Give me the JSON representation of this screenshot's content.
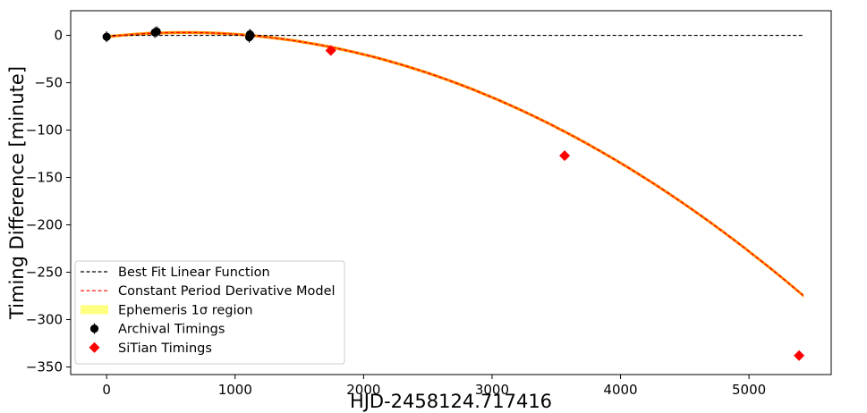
{
  "chart_data": {
    "type": "scatter",
    "title": "",
    "xlabel": "HJD-2458124.717416",
    "ylabel": "Timing Difference [minute]",
    "xlim": [
      -280,
      5640
    ],
    "ylim": [
      -358,
      26
    ],
    "xticks": [
      0,
      1000,
      2000,
      3000,
      4000,
      5000
    ],
    "yticks": [
      0,
      -50,
      -100,
      -150,
      -200,
      -250,
      -300,
      -350
    ],
    "xtick_labels": [
      "0",
      "1000",
      "2000",
      "3000",
      "4000",
      "5000"
    ],
    "ytick_labels": [
      "0",
      "−50",
      "−100",
      "−150",
      "−200",
      "−250",
      "−300",
      "−350"
    ],
    "grid": false,
    "legend_position": "lower-left",
    "series": [
      {
        "name": "Best Fit Linear Function",
        "kind": "line",
        "style": "dashed",
        "color": "#000000",
        "x": [
          0,
          5420
        ],
        "y": [
          0,
          0
        ]
      },
      {
        "name": "Constant Period Derivative Model",
        "kind": "line",
        "style": "dashed",
        "color": "#ff0000",
        "model": {
          "a": -1.2e-05,
          "b": 0.0147,
          "c": -1.5,
          "xmin": 0,
          "xmax": 5420
        }
      },
      {
        "name": "Ephemeris 1σ region",
        "kind": "band",
        "color": "#ffff80",
        "display_color": "#ff8c00",
        "halfwidth": 0.8
      },
      {
        "name": "Archival Timings",
        "kind": "points",
        "marker": "circle",
        "color": "#000000",
        "x": [
          0,
          375,
          390,
          1110,
          1115,
          1120
        ],
        "y": [
          -1.5,
          3,
          4,
          -2,
          1,
          0
        ]
      },
      {
        "name": "SiTian Timings",
        "kind": "points",
        "marker": "diamond",
        "color": "#ff0000",
        "x": [
          1745,
          3565,
          5390
        ],
        "y": [
          -16,
          -127,
          -338
        ]
      }
    ]
  }
}
